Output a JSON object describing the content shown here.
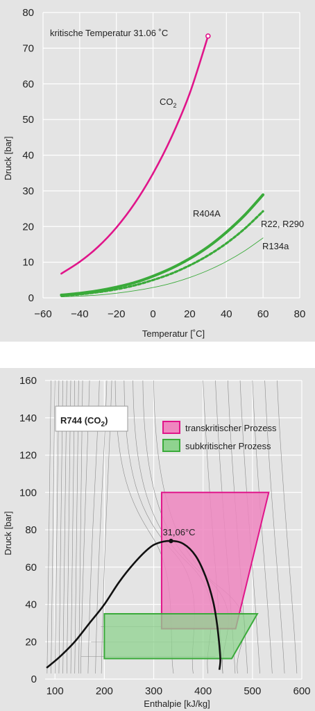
{
  "chart_data": [
    {
      "type": "line",
      "annotation": "kritische Temperatur 31.06 ˚C",
      "xlabel": "Temperatur  [˚C]",
      "ylabel": "Druck  [bar]",
      "xlim": [
        -60,
        80
      ],
      "ylim": [
        0,
        80
      ],
      "xticks": [
        "−60",
        "−40",
        "−20",
        "0",
        "20",
        "40",
        "60",
        "80"
      ],
      "yticks": [
        "0",
        "10",
        "20",
        "30",
        "40",
        "50",
        "60",
        "70",
        "80"
      ],
      "grid": true,
      "series": [
        {
          "name": "CO2",
          "label_main": "CO",
          "label_sub": "2",
          "color": "#e0158a",
          "style": "solid",
          "x": [
            -50,
            -40,
            -30,
            -20,
            -10,
            0,
            10,
            20,
            30
          ],
          "y": [
            6.8,
            10.1,
            14.3,
            19.7,
            26.5,
            34.9,
            45.0,
            57.3,
            73.4
          ]
        },
        {
          "name": "R404A",
          "color": "#3aaa3a",
          "style": "thick",
          "x": [
            -50,
            -40,
            -30,
            -20,
            -10,
            0,
            10,
            20,
            30,
            40,
            50,
            60
          ],
          "y": [
            0.8,
            1.3,
            2.0,
            3.0,
            4.3,
            6.1,
            8.3,
            11.0,
            14.3,
            18.4,
            23.2,
            28.9
          ]
        },
        {
          "name": "R22, R290",
          "color": "#3aaa3a",
          "style": "dotted",
          "x": [
            -50,
            -40,
            -30,
            -20,
            -10,
            0,
            10,
            20,
            30,
            40,
            50,
            60
          ],
          "y": [
            0.6,
            1.0,
            1.6,
            2.4,
            3.5,
            5.0,
            6.8,
            9.1,
            11.9,
            15.3,
            19.4,
            24.3
          ]
        },
        {
          "name": "R134a",
          "color": "#3aaa3a",
          "style": "thin",
          "x": [
            -50,
            -40,
            -30,
            -20,
            -10,
            0,
            10,
            20,
            30,
            40,
            50,
            60
          ],
          "y": [
            0.3,
            0.5,
            0.8,
            1.3,
            2.0,
            2.9,
            4.1,
            5.7,
            7.7,
            10.2,
            13.2,
            16.8
          ]
        }
      ]
    },
    {
      "type": "area",
      "title_main": "R744 (CO",
      "title_sub": "2",
      "title_close": ")",
      "annotation": "31,06°C",
      "xlabel": "Enthalpie [kJ/kg]",
      "ylabel": "Druck [bar]",
      "xlim": [
        80,
        600
      ],
      "ylim": [
        0,
        160
      ],
      "xticks": [
        "100",
        "200",
        "300",
        "400",
        "500",
        "600"
      ],
      "yticks": [
        "0",
        "20",
        "40",
        "60",
        "80",
        "100",
        "120",
        "140",
        "160"
      ],
      "grid": true,
      "critical_point": {
        "x": 335,
        "y": 74
      },
      "saturation_curve": {
        "x": [
          83,
          110,
          140,
          170,
          200,
          230,
          260,
          290,
          310,
          335,
          360,
          385,
          405,
          420,
          428,
          433,
          435,
          433
        ],
        "y": [
          6,
          12,
          20,
          30,
          40,
          52,
          62,
          70,
          73,
          74,
          72.5,
          66,
          55,
          42,
          30,
          18,
          10,
          5
        ]
      },
      "regions": [
        {
          "name": "transkritischer Prozess",
          "color": "#ef86bf",
          "border": "#e0158a",
          "x": [
            316,
            533,
            466,
            316
          ],
          "y": [
            100,
            100,
            27,
            27
          ]
        },
        {
          "name": "subkritischer Prozess",
          "color": "#8fd38f",
          "border": "#3aaa3a",
          "x": [
            200,
            510,
            458,
            200
          ],
          "y": [
            35,
            35,
            11,
            11
          ]
        }
      ],
      "isotherm_color": "#8a8a8a"
    }
  ]
}
